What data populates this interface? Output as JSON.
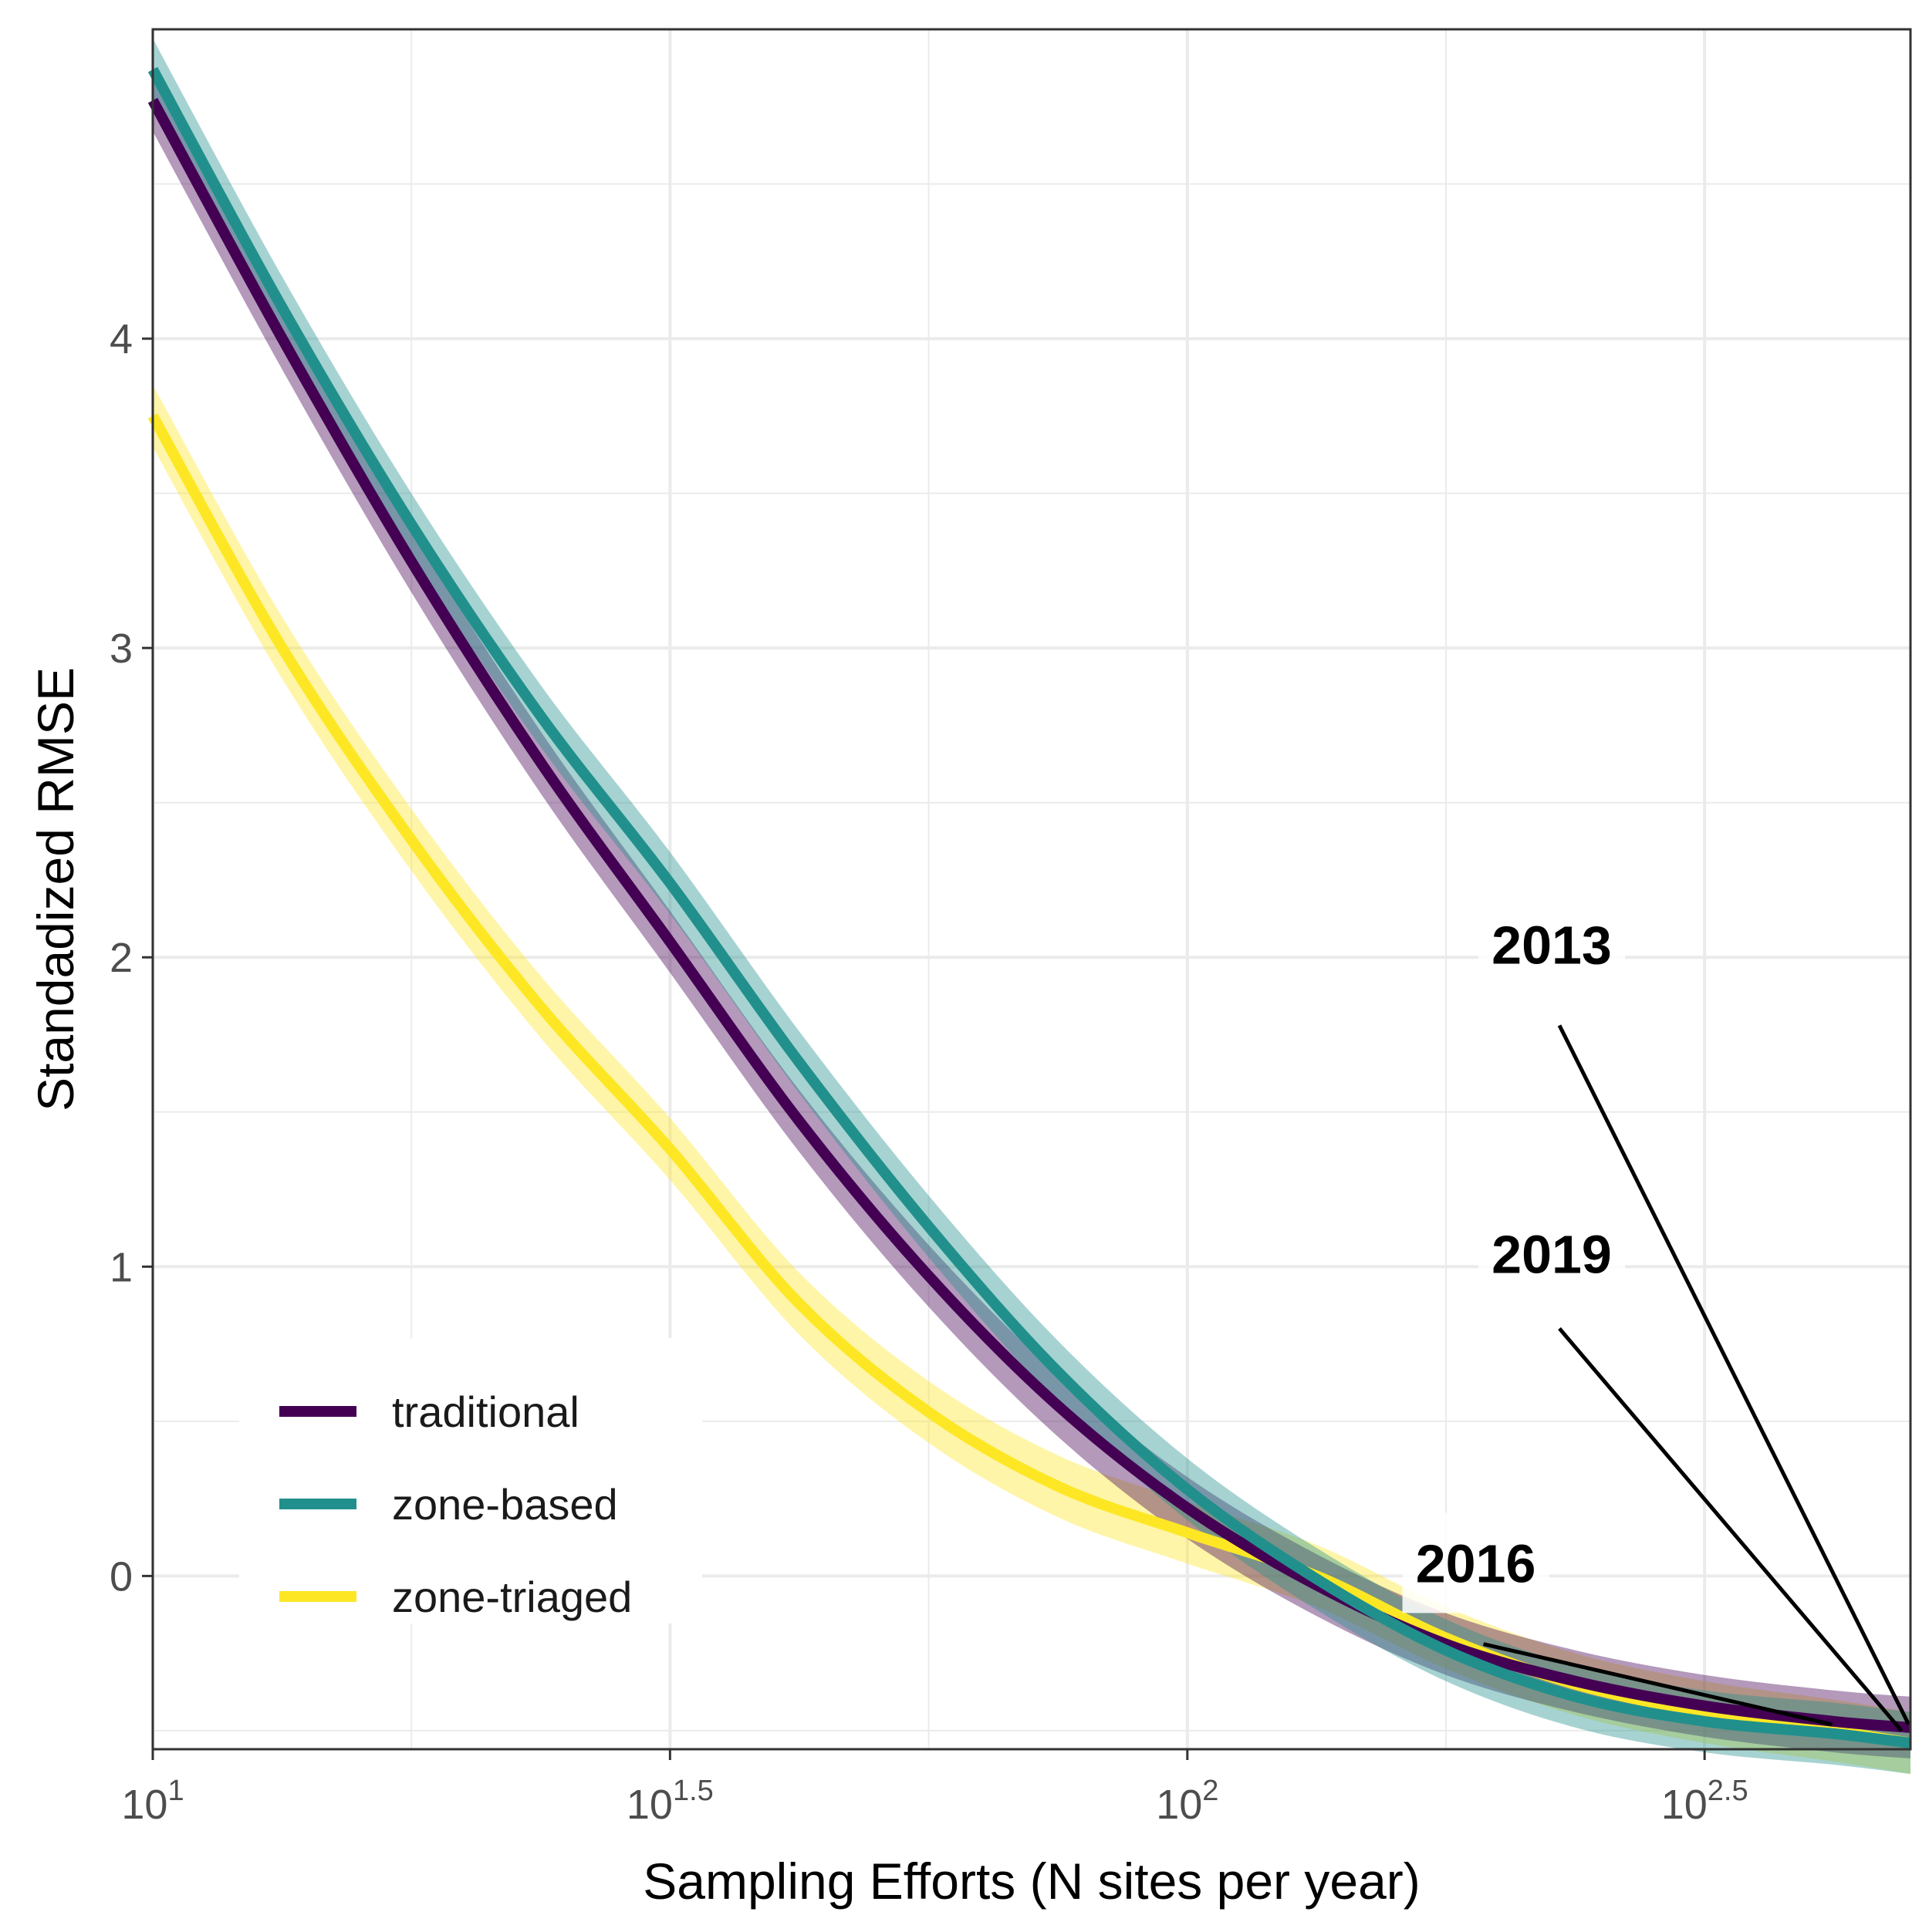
{
  "chart_data": {
    "type": "line",
    "xlabel": "Sampling Efforts (N sites per year)",
    "ylabel": "Standadized RMSE",
    "x_scale": "log10",
    "xlim": [
      10,
      500
    ],
    "ylim": [
      -0.56,
      5.0
    ],
    "x_ticks": [
      {
        "value": 10,
        "base": "10",
        "exp": "1"
      },
      {
        "value": 31.62,
        "base": "10",
        "exp": "1.5"
      },
      {
        "value": 100,
        "base": "10",
        "exp": "2"
      },
      {
        "value": 316.2,
        "base": "10",
        "exp": "2.5"
      }
    ],
    "y_ticks": [
      {
        "value": 0,
        "label": "0"
      },
      {
        "value": 1,
        "label": "1"
      },
      {
        "value": 2,
        "label": "2"
      },
      {
        "value": 3,
        "label": "3"
      },
      {
        "value": 4,
        "label": "4"
      }
    ],
    "grid": true,
    "legend_position": "bottom-left",
    "series": [
      {
        "name": "traditional",
        "color": "#440154",
        "x": [
          10,
          13.34,
          17.78,
          23.71,
          31.62,
          42.17,
          56.23,
          74.99,
          100,
          133.4,
          177.8,
          237.1,
          316.2,
          421.7,
          500
        ],
        "values": [
          4.77,
          4.0,
          3.28,
          2.63,
          2.05,
          1.47,
          0.97,
          0.55,
          0.22,
          -0.03,
          -0.22,
          -0.34,
          -0.42,
          -0.47,
          -0.49
        ],
        "band": 0.1
      },
      {
        "name": "zone-based",
        "color": "#21908c",
        "x": [
          10,
          13.34,
          17.78,
          23.71,
          31.62,
          42.17,
          56.23,
          74.99,
          100,
          133.4,
          177.8,
          237.1,
          316.2,
          421.7,
          500
        ],
        "values": [
          4.87,
          4.1,
          3.4,
          2.78,
          2.24,
          1.66,
          1.13,
          0.66,
          0.28,
          -0.01,
          -0.24,
          -0.39,
          -0.47,
          -0.51,
          -0.54
        ],
        "band": 0.1
      },
      {
        "name": "zone-triaged",
        "color": "#fde725",
        "x": [
          10,
          13.34,
          17.78,
          23.71,
          31.62,
          42.17,
          56.23,
          74.99,
          100,
          133.4,
          177.8,
          237.1,
          316.2,
          421.7,
          500
        ],
        "values": [
          3.75,
          3.0,
          2.38,
          1.84,
          1.38,
          0.88,
          0.53,
          0.29,
          0.14,
          0.0,
          -0.2,
          -0.35,
          -0.44,
          -0.5,
          -0.54
        ],
        "band": 0.1
      }
    ],
    "annotations": [
      {
        "text": "2013",
        "label_x": 225,
        "label_y": 1.98,
        "point_x": 498,
        "point_y": -0.48,
        "line_from_y": 1.78
      },
      {
        "text": "2019",
        "label_x": 225,
        "label_y": 0.98,
        "point_x": 490,
        "point_y": -0.5,
        "line_from_y": 0.8
      },
      {
        "text": "2016",
        "label_x": 190,
        "label_y": -0.02,
        "point_x": 420,
        "point_y": -0.48,
        "line_from_y": -0.22
      }
    ]
  }
}
